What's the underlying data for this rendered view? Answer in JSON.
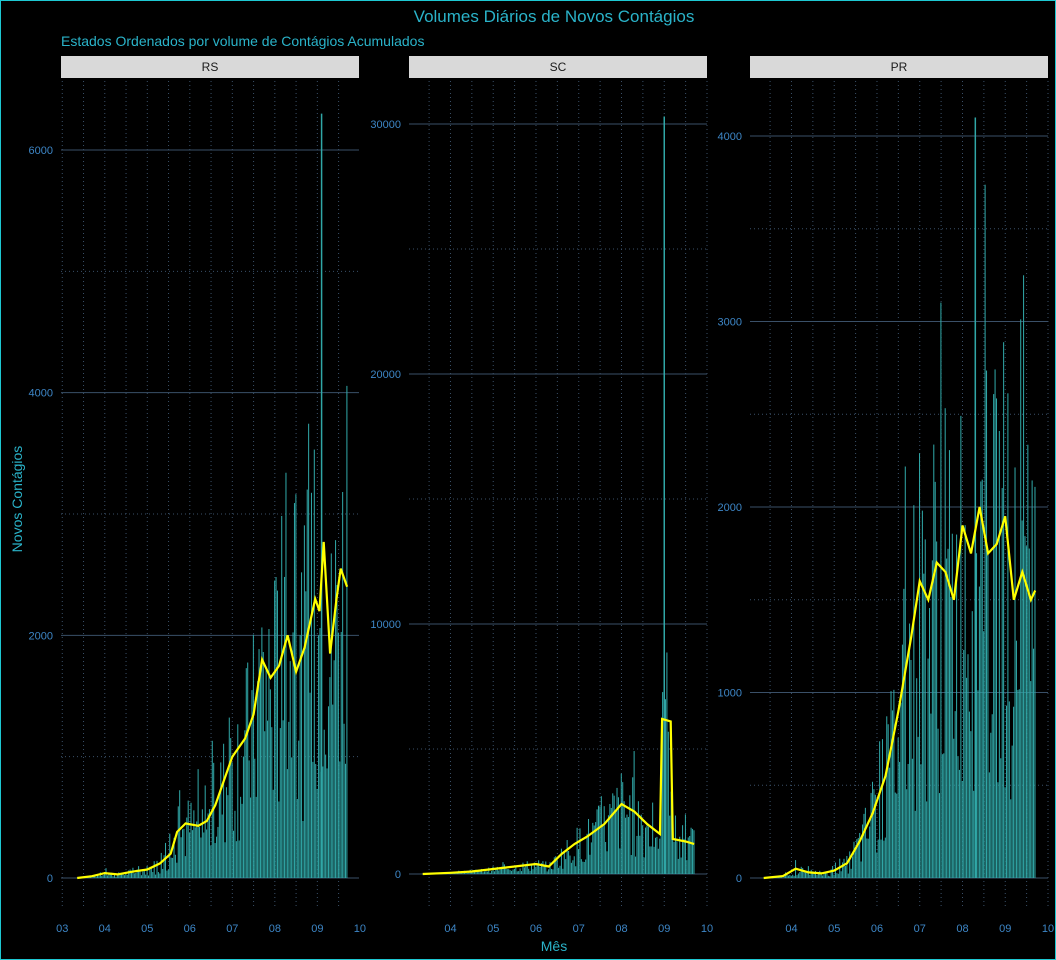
{
  "title": "Volumes Diários de Novos Contágios",
  "subtitle": "Estados Ordenados por volume de Contágios Acumulados",
  "xlabel": "Mês",
  "ylabel": "Novos Contágios",
  "colors": {
    "bars": "#30a7a7",
    "smooth": "#ffff00",
    "text": "#2ab3c9",
    "grid": "#3a5068",
    "strip": "#d9d9d9",
    "background": "#000000"
  },
  "chart_data": [
    {
      "type": "bar",
      "panel": "RS",
      "x_ticks": [
        "03",
        "04",
        "05",
        "06",
        "07",
        "08",
        "09",
        "10"
      ],
      "y_ticks": [
        "0",
        "2000",
        "4000",
        "6000"
      ],
      "ylim": [
        -250,
        6600
      ],
      "notable_values": {
        "peak_day_month": 9.1,
        "peak_value": 6300
      },
      "monthly_daily_level": [
        {
          "month": "03",
          "daily": [
            0,
            20
          ]
        },
        {
          "month": "04",
          "daily": [
            20,
            60
          ]
        },
        {
          "month": "05",
          "daily": [
            60,
            300
          ]
        },
        {
          "month": "06",
          "daily": [
            300,
            500
          ]
        },
        {
          "month": "07",
          "daily": [
            500,
            1400
          ]
        },
        {
          "month": "08",
          "daily": [
            1500,
            2000
          ]
        },
        {
          "month": "09",
          "daily": [
            2000,
            2800
          ]
        }
      ],
      "moving_average": [
        [
          3.35,
          0
        ],
        [
          3.7,
          15
        ],
        [
          4.0,
          40
        ],
        [
          4.3,
          30
        ],
        [
          4.7,
          55
        ],
        [
          5.0,
          70
        ],
        [
          5.3,
          120
        ],
        [
          5.55,
          200
        ],
        [
          5.7,
          380
        ],
        [
          5.9,
          450
        ],
        [
          6.2,
          430
        ],
        [
          6.4,
          470
        ],
        [
          6.6,
          600
        ],
        [
          6.8,
          800
        ],
        [
          7.0,
          1000
        ],
        [
          7.3,
          1150
        ],
        [
          7.5,
          1350
        ],
        [
          7.7,
          1800
        ],
        [
          7.9,
          1650
        ],
        [
          8.1,
          1750
        ],
        [
          8.3,
          2000
        ],
        [
          8.5,
          1700
        ],
        [
          8.7,
          1900
        ],
        [
          8.95,
          2300
        ],
        [
          9.05,
          2200
        ],
        [
          9.15,
          2770
        ],
        [
          9.3,
          1850
        ],
        [
          9.45,
          2300
        ],
        [
          9.55,
          2550
        ],
        [
          9.7,
          2400
        ]
      ]
    },
    {
      "type": "bar",
      "panel": "SC",
      "x_ticks": [
        "04",
        "05",
        "06",
        "07",
        "08",
        "09",
        "10"
      ],
      "y_ticks": [
        "0",
        "10000",
        "20000",
        "30000"
      ],
      "ylim": [
        -1200,
        31500
      ],
      "notable_values": {
        "peak_day_month": 9.0,
        "peak_value": 30300
      },
      "moving_average": [
        [
          3.35,
          0
        ],
        [
          4.0,
          50
        ],
        [
          4.5,
          100
        ],
        [
          5.0,
          200
        ],
        [
          5.5,
          300
        ],
        [
          6.0,
          400
        ],
        [
          6.3,
          300
        ],
        [
          6.6,
          800
        ],
        [
          6.9,
          1200
        ],
        [
          7.2,
          1500
        ],
        [
          7.6,
          2000
        ],
        [
          8.0,
          2800
        ],
        [
          8.3,
          2500
        ],
        [
          8.6,
          2000
        ],
        [
          8.9,
          1600
        ],
        [
          8.95,
          6200
        ],
        [
          9.15,
          6100
        ],
        [
          9.2,
          1400
        ],
        [
          9.5,
          1300
        ],
        [
          9.7,
          1200
        ]
      ]
    },
    {
      "type": "bar",
      "panel": "PR",
      "x_ticks": [
        "04",
        "05",
        "06",
        "07",
        "08",
        "09",
        "10"
      ],
      "y_ticks": [
        "0",
        "1000",
        "2000",
        "3000",
        "4000"
      ],
      "ylim": [
        -170,
        4250
      ],
      "notable_values": {
        "peak_day_month": 8.3,
        "peak_value": 4100
      },
      "moving_average": [
        [
          3.35,
          0
        ],
        [
          3.8,
          10
        ],
        [
          4.1,
          50
        ],
        [
          4.4,
          30
        ],
        [
          4.7,
          25
        ],
        [
          5.0,
          40
        ],
        [
          5.3,
          80
        ],
        [
          5.6,
          200
        ],
        [
          5.9,
          350
        ],
        [
          6.2,
          550
        ],
        [
          6.5,
          900
        ],
        [
          6.8,
          1300
        ],
        [
          7.0,
          1600
        ],
        [
          7.2,
          1500
        ],
        [
          7.4,
          1700
        ],
        [
          7.6,
          1650
        ],
        [
          7.8,
          1500
        ],
        [
          8.0,
          1900
        ],
        [
          8.2,
          1750
        ],
        [
          8.4,
          2000
        ],
        [
          8.6,
          1750
        ],
        [
          8.8,
          1800
        ],
        [
          9.0,
          1950
        ],
        [
          9.2,
          1500
        ],
        [
          9.4,
          1650
        ],
        [
          9.6,
          1500
        ],
        [
          9.7,
          1550
        ]
      ]
    }
  ]
}
